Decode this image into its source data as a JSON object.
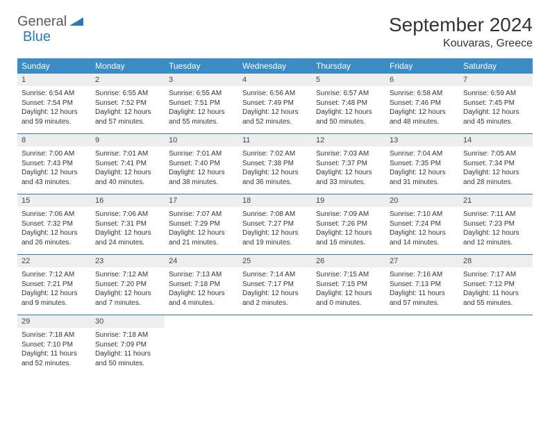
{
  "brand": {
    "part1": "General",
    "part2": "Blue"
  },
  "title": "September 2024",
  "location": "Kouvaras, Greece",
  "colors": {
    "header_bg": "#3b8bc4",
    "header_text": "#ffffff",
    "daynum_bg": "#eeeeee",
    "week_divider": "#2a7ab8",
    "logo_gray": "#5a5a5a",
    "logo_blue": "#2a7ab8"
  },
  "weekdays": [
    "Sunday",
    "Monday",
    "Tuesday",
    "Wednesday",
    "Thursday",
    "Friday",
    "Saturday"
  ],
  "weeks": [
    [
      {
        "n": "1",
        "sr": "6:54 AM",
        "ss": "7:54 PM",
        "dh": "12",
        "dm": "59"
      },
      {
        "n": "2",
        "sr": "6:55 AM",
        "ss": "7:52 PM",
        "dh": "12",
        "dm": "57"
      },
      {
        "n": "3",
        "sr": "6:55 AM",
        "ss": "7:51 PM",
        "dh": "12",
        "dm": "55"
      },
      {
        "n": "4",
        "sr": "6:56 AM",
        "ss": "7:49 PM",
        "dh": "12",
        "dm": "52"
      },
      {
        "n": "5",
        "sr": "6:57 AM",
        "ss": "7:48 PM",
        "dh": "12",
        "dm": "50"
      },
      {
        "n": "6",
        "sr": "6:58 AM",
        "ss": "7:46 PM",
        "dh": "12",
        "dm": "48"
      },
      {
        "n": "7",
        "sr": "6:59 AM",
        "ss": "7:45 PM",
        "dh": "12",
        "dm": "45"
      }
    ],
    [
      {
        "n": "8",
        "sr": "7:00 AM",
        "ss": "7:43 PM",
        "dh": "12",
        "dm": "43"
      },
      {
        "n": "9",
        "sr": "7:01 AM",
        "ss": "7:41 PM",
        "dh": "12",
        "dm": "40"
      },
      {
        "n": "10",
        "sr": "7:01 AM",
        "ss": "7:40 PM",
        "dh": "12",
        "dm": "38"
      },
      {
        "n": "11",
        "sr": "7:02 AM",
        "ss": "7:38 PM",
        "dh": "12",
        "dm": "36"
      },
      {
        "n": "12",
        "sr": "7:03 AM",
        "ss": "7:37 PM",
        "dh": "12",
        "dm": "33"
      },
      {
        "n": "13",
        "sr": "7:04 AM",
        "ss": "7:35 PM",
        "dh": "12",
        "dm": "31"
      },
      {
        "n": "14",
        "sr": "7:05 AM",
        "ss": "7:34 PM",
        "dh": "12",
        "dm": "28"
      }
    ],
    [
      {
        "n": "15",
        "sr": "7:06 AM",
        "ss": "7:32 PM",
        "dh": "12",
        "dm": "26"
      },
      {
        "n": "16",
        "sr": "7:06 AM",
        "ss": "7:31 PM",
        "dh": "12",
        "dm": "24"
      },
      {
        "n": "17",
        "sr": "7:07 AM",
        "ss": "7:29 PM",
        "dh": "12",
        "dm": "21"
      },
      {
        "n": "18",
        "sr": "7:08 AM",
        "ss": "7:27 PM",
        "dh": "12",
        "dm": "19"
      },
      {
        "n": "19",
        "sr": "7:09 AM",
        "ss": "7:26 PM",
        "dh": "12",
        "dm": "16"
      },
      {
        "n": "20",
        "sr": "7:10 AM",
        "ss": "7:24 PM",
        "dh": "12",
        "dm": "14"
      },
      {
        "n": "21",
        "sr": "7:11 AM",
        "ss": "7:23 PM",
        "dh": "12",
        "dm": "12"
      }
    ],
    [
      {
        "n": "22",
        "sr": "7:12 AM",
        "ss": "7:21 PM",
        "dh": "12",
        "dm": "9"
      },
      {
        "n": "23",
        "sr": "7:12 AM",
        "ss": "7:20 PM",
        "dh": "12",
        "dm": "7"
      },
      {
        "n": "24",
        "sr": "7:13 AM",
        "ss": "7:18 PM",
        "dh": "12",
        "dm": "4"
      },
      {
        "n": "25",
        "sr": "7:14 AM",
        "ss": "7:17 PM",
        "dh": "12",
        "dm": "2"
      },
      {
        "n": "26",
        "sr": "7:15 AM",
        "ss": "7:15 PM",
        "dh": "12",
        "dm": "0"
      },
      {
        "n": "27",
        "sr": "7:16 AM",
        "ss": "7:13 PM",
        "dh": "11",
        "dm": "57"
      },
      {
        "n": "28",
        "sr": "7:17 AM",
        "ss": "7:12 PM",
        "dh": "11",
        "dm": "55"
      }
    ],
    [
      {
        "n": "29",
        "sr": "7:18 AM",
        "ss": "7:10 PM",
        "dh": "11",
        "dm": "52"
      },
      {
        "n": "30",
        "sr": "7:18 AM",
        "ss": "7:09 PM",
        "dh": "11",
        "dm": "50"
      },
      null,
      null,
      null,
      null,
      null
    ]
  ]
}
